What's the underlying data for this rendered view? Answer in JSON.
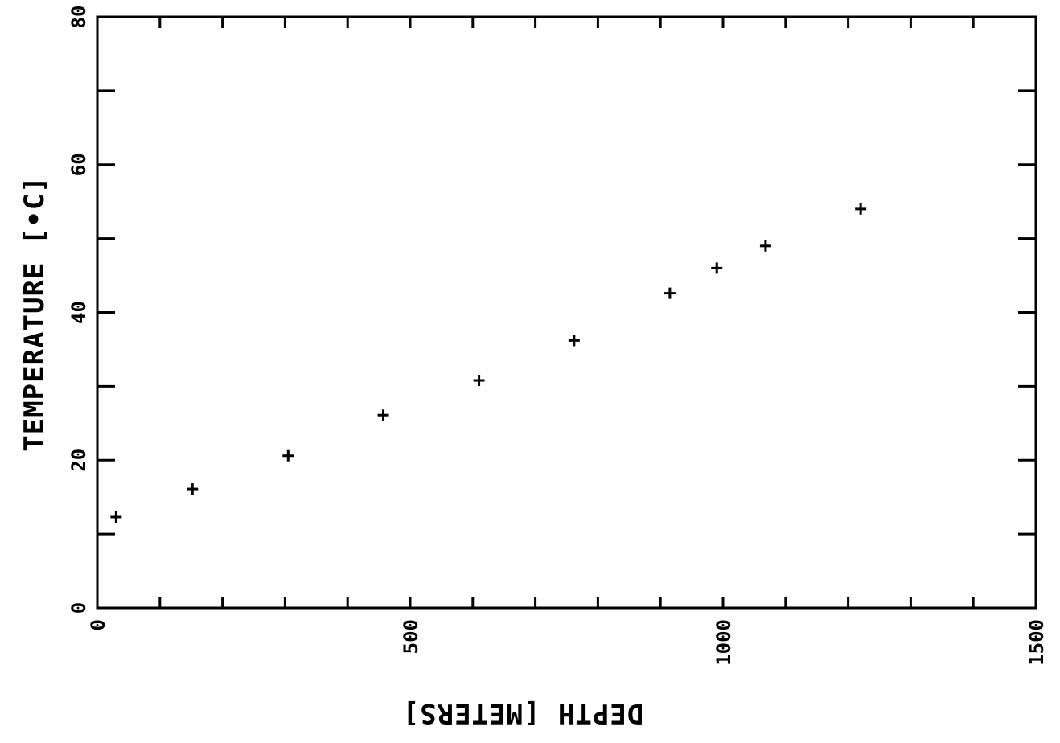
{
  "chart_data": {
    "type": "scatter",
    "title": "",
    "xlabel": "DEPTH  [METERS]",
    "ylabel": "TEMPERATURE  [•C]",
    "xlim": [
      0,
      1500
    ],
    "ylim": [
      0,
      80
    ],
    "x_ticks": [
      "0",
      "500",
      "1000",
      "1500"
    ],
    "y_ticks": [
      "0",
      "20",
      "40",
      "60",
      "80"
    ],
    "marker": "plus",
    "grid": false,
    "series": [
      {
        "x": [
          30,
          152,
          305,
          457,
          610,
          762,
          915,
          990,
          1068,
          1220
        ],
        "y": [
          12.3,
          16.1,
          20.6,
          26.1,
          30.8,
          36.2,
          42.6,
          46.0,
          49.0,
          54.0
        ]
      }
    ]
  }
}
